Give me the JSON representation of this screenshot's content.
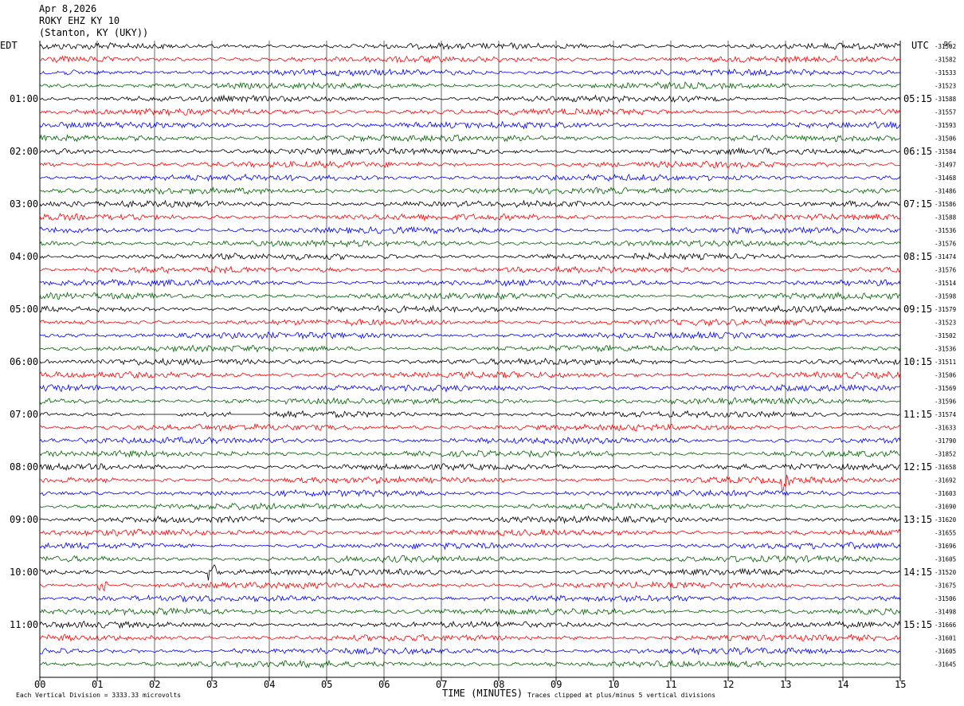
{
  "header": {
    "date": "Apr 8,2026",
    "station": "ROKY EHZ KY 10",
    "location": "(Stanton, KY (UKY))"
  },
  "axes": {
    "left_label": "EDT",
    "right_label": "UTC",
    "dc_label": "DC",
    "x_title": "TIME (MINUTES)"
  },
  "footer": {
    "scale_note": "Each Vertical Division = 3333.33 microvolts",
    "clip_note": "Traces clipped at plus/minus 5 vertical divisions"
  },
  "colors": {
    "trace_cycle": [
      "#000000",
      "#ff0000",
      "#0000ff",
      "#006400"
    ],
    "grid": "#000000"
  },
  "chart_data": {
    "type": "helicorder",
    "x": {
      "label": "TIME (MINUTES)",
      "range": [
        0,
        15
      ],
      "ticks": [
        "00",
        "01",
        "02",
        "03",
        "04",
        "05",
        "06",
        "07",
        "08",
        "09",
        "10",
        "11",
        "12",
        "13",
        "14",
        "15"
      ]
    },
    "rows_per_hour": 4,
    "row_count": 48,
    "left_time_labels": [
      "01:00",
      "02:00",
      "03:00",
      "04:00",
      "05:00",
      "06:00",
      "07:00",
      "08:00",
      "09:00",
      "10:00",
      "11:00"
    ],
    "right_time_labels": [
      "05:15",
      "06:15",
      "07:15",
      "08:15",
      "09:15",
      "10:15",
      "11:15",
      "12:15",
      "13:15",
      "14:15",
      "15:15"
    ],
    "hour_label_rows": [
      4,
      8,
      12,
      16,
      20,
      24,
      28,
      32,
      36,
      40,
      44
    ],
    "dc_offsets": [
      "-31502",
      "-31582",
      "-31533",
      "-31523",
      "-31588",
      "-31557",
      "-31593",
      "-31506",
      "-31584",
      "-31497",
      "-31468",
      "-31486",
      "-31586",
      "-31588",
      "-31536",
      "-31576",
      "-31474",
      "-31576",
      "-31514",
      "-31598",
      "-31579",
      "-31523",
      "-31502",
      "-31536",
      "-31511",
      "-31506",
      "-31569",
      "-31596",
      "-31574",
      "-31633",
      "-31790",
      "-31852",
      "-31658",
      "-31692",
      "-31603",
      "-31690",
      "-31620",
      "-31655",
      "-31696",
      "-31605",
      "-31520",
      "-31675",
      "-31506",
      "-31498",
      "-31666",
      "-31601",
      "-31605",
      "-31645"
    ],
    "events": [
      {
        "row": 28,
        "minute": 2.1,
        "note": "flatline segment"
      },
      {
        "row": 28,
        "minute": 3.6,
        "note": "flatline segment"
      },
      {
        "row": 33,
        "minute": 13.0,
        "note": "spike"
      },
      {
        "row": 40,
        "minute": 3.0,
        "note": "spike"
      },
      {
        "row": 41,
        "minute": 1.1,
        "note": "spike"
      }
    ]
  }
}
